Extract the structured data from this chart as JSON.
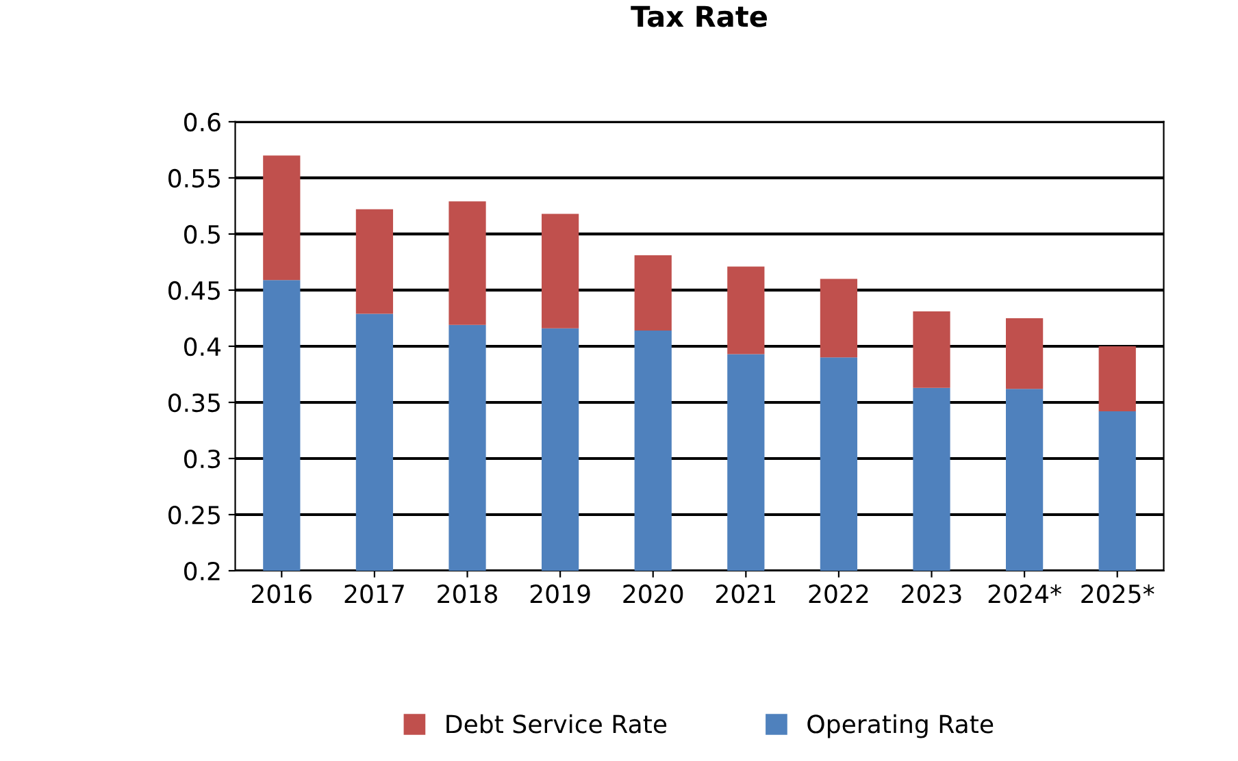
{
  "chart_data": {
    "type": "bar",
    "title": "Tax Rate",
    "stacked": true,
    "categories": [
      "2016",
      "2017",
      "2018",
      "2019",
      "2020",
      "2021",
      "2022",
      "2023",
      "2024*",
      "2025*"
    ],
    "series": [
      {
        "name": "Operating Rate",
        "color": "#4f81bd",
        "values": [
          0.459,
          0.429,
          0.419,
          0.416,
          0.414,
          0.393,
          0.39,
          0.363,
          0.362,
          0.342
        ]
      },
      {
        "name": "Debt Service Rate",
        "color": "#c0504d",
        "base": [
          0.459,
          0.429,
          0.419,
          0.416,
          0.414,
          0.393,
          0.39,
          0.363,
          0.362,
          0.342
        ],
        "values": [
          0.111,
          0.093,
          0.11,
          0.102,
          0.067,
          0.078,
          0.07,
          0.068,
          0.063,
          0.058
        ]
      }
    ],
    "ylim": [
      0.2,
      0.6
    ],
    "yticks": [
      0.2,
      0.25,
      0.3,
      0.35,
      0.4,
      0.45,
      0.5,
      0.55,
      0.6
    ],
    "grid": "y",
    "legend": "bottom"
  }
}
